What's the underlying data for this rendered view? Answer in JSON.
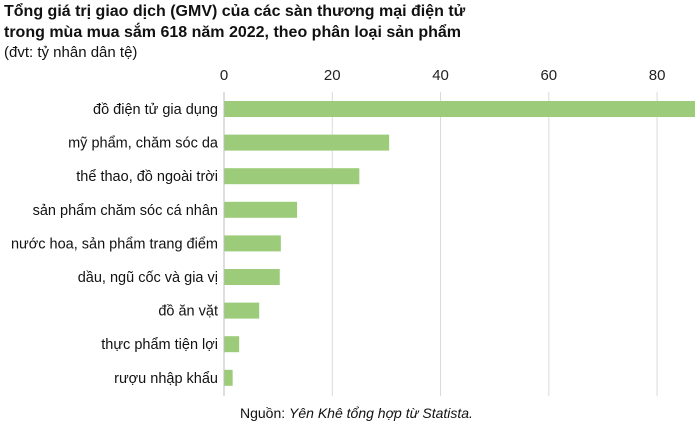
{
  "chart_data": {
    "type": "bar",
    "orientation": "horizontal",
    "title_line1": "Tổng giá trị giao dịch (GMV) của các sàn thương mại điện tử",
    "title_line2": "trong mùa mua sắm 618 năm 2022, theo phân loại sản phẩm",
    "subtitle": "(đvt: tỷ nhân dân tệ)",
    "categories": [
      "đồ điện tử gia dụng",
      "mỹ phẩm, chăm sóc da",
      "thể thao, đồ ngoài trời",
      "sản phẩm chăm sóc cá nhân",
      "nước hoa, sản phẩm trang điểm",
      "dầu, ngũ cốc và gia vị",
      "đồ ăn vặt",
      "thực phẩm tiện lợi",
      "rượu nhập khẩu"
    ],
    "values": [
      87.5,
      30.5,
      25,
      13.5,
      10.5,
      10.3,
      6.5,
      2.8,
      1.6
    ],
    "xticks": [
      0,
      20,
      40,
      60,
      80
    ],
    "xlim": [
      0,
      87
    ],
    "axis_position": "top",
    "grid": true,
    "bar_color": "#9ccc7a",
    "grid_color": "#d9d9d9"
  },
  "source": {
    "prefix": "Nguồn: ",
    "text": "Yên Khê tổng hợp từ Statista."
  }
}
